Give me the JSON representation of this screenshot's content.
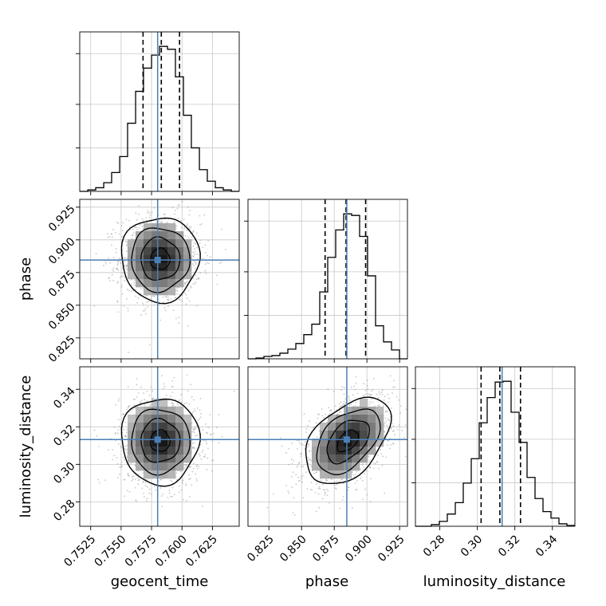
{
  "chart_data": {
    "type": "corner",
    "grid": true,
    "colors": {
      "truth": "#4a7fb5",
      "hist": "#000000",
      "density": "#000000",
      "points": "#9a9a9a",
      "grid": "#c8c8c8"
    },
    "parameters": [
      {
        "name": "geocent_time",
        "label": "geocent_time",
        "range": [
          0.7516,
          0.7647
        ],
        "ticks": [
          0.7525,
          0.755,
          0.7575,
          0.76,
          0.7625
        ],
        "tick_labels": [
          "0.7525",
          "0.7550",
          "0.7575",
          "0.7600",
          "0.7625"
        ],
        "truth": 0.758,
        "quantiles": [
          0.7568,
          0.7583,
          0.7598
        ]
      },
      {
        "name": "phase",
        "label": "phase",
        "range": [
          0.809,
          0.931
        ],
        "ticks": [
          0.825,
          0.85,
          0.875,
          0.9,
          0.925
        ],
        "tick_labels": [
          "0.825",
          "0.850",
          "0.875",
          "0.900",
          "0.925"
        ],
        "truth": 0.8846,
        "quantiles": [
          0.868,
          0.884,
          0.899
        ]
      },
      {
        "name": "luminosity_distance",
        "label": "luminosity_distance",
        "range": [
          0.267,
          0.352
        ],
        "ticks": [
          0.28,
          0.3,
          0.32,
          0.34
        ],
        "tick_labels": [
          "0.28",
          "0.30",
          "0.32",
          "0.34"
        ],
        "truth": 0.3132,
        "quantiles": [
          0.302,
          0.312,
          0.323
        ]
      }
    ],
    "histograms": {
      "geocent_time": {
        "bin_edges": [
          0.7516,
          0.75226,
          0.75291,
          0.75357,
          0.75422,
          0.75488,
          0.75553,
          0.75619,
          0.75684,
          0.7575,
          0.75815,
          0.75881,
          0.75946,
          0.76012,
          0.76077,
          0.76143,
          0.76208,
          0.76274,
          0.76339,
          0.76405,
          0.7647
        ],
        "counts": [
          0,
          2,
          5,
          12,
          26,
          48,
          94,
          138,
          170,
          188,
          200,
          196,
          158,
          105,
          60,
          30,
          14,
          5,
          2,
          0
        ]
      },
      "phase": {
        "bin_edges": [
          0.809,
          0.8151,
          0.8212,
          0.8273,
          0.8334,
          0.8395,
          0.8456,
          0.8517,
          0.8578,
          0.8639,
          0.87,
          0.8761,
          0.8822,
          0.8883,
          0.8944,
          0.9005,
          0.9066,
          0.9127,
          0.9188,
          0.9249,
          0.931
        ],
        "counts": [
          0,
          1,
          3,
          4,
          7,
          12,
          19,
          30,
          43,
          83,
          126,
          160,
          180,
          178,
          152,
          103,
          41,
          21,
          11,
          0
        ]
      },
      "luminosity_distance": {
        "bin_edges": [
          0.267,
          0.27125,
          0.2755,
          0.27975,
          0.284,
          0.28825,
          0.2925,
          0.29675,
          0.301,
          0.30525,
          0.3095,
          0.31375,
          0.318,
          0.32225,
          0.3265,
          0.33075,
          0.335,
          0.33925,
          0.3435,
          0.34775,
          0.352
        ],
        "counts": [
          0,
          0,
          2,
          6,
          15,
          29,
          53,
          83,
          127,
          158,
          177,
          178,
          140,
          103,
          60,
          34,
          18,
          10,
          3,
          1
        ]
      }
    },
    "pairs": [
      {
        "x": "geocent_time",
        "y": "phase",
        "mean": [
          0.7582,
          0.8853
        ],
        "std": [
          0.0016,
          0.0162
        ],
        "corr": 0.0
      },
      {
        "x": "geocent_time",
        "y": "luminosity_distance",
        "mean": [
          0.7582,
          0.3125
        ],
        "std": [
          0.0016,
          0.0115
        ],
        "corr": 0.0
      },
      {
        "x": "phase",
        "y": "luminosity_distance",
        "mean": [
          0.8853,
          0.3125
        ],
        "std": [
          0.0162,
          0.0115
        ],
        "corr": 0.45
      }
    ]
  }
}
